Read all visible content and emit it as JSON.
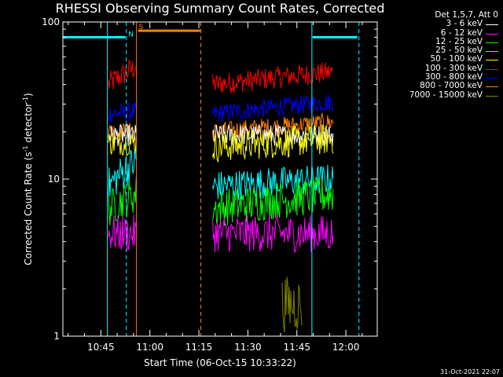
{
  "chart_data": {
    "type": "line",
    "title": "RHESSI Observing Summary Count Rates, Corrected",
    "xlabel": "Start Time (06-Oct-15 10:33:22)",
    "ylabel_parts": [
      "Corrected Count Rate (s",
      "-1",
      " detector",
      "-1",
      ")"
    ],
    "yscale": "log",
    "ylim": [
      1,
      100
    ],
    "xlim_min": [
      33.37,
      129.6
    ],
    "yticks": [
      {
        "v": 1,
        "label": "1"
      },
      {
        "v": 10,
        "label": "10"
      },
      {
        "v": 100,
        "label": "100"
      }
    ],
    "xticks": [
      {
        "v": 45,
        "label": "10:45"
      },
      {
        "v": 60,
        "label": "11:00"
      },
      {
        "v": 75,
        "label": "11:15"
      },
      {
        "v": 90,
        "label": "11:30"
      },
      {
        "v": 105,
        "label": "11:45"
      },
      {
        "v": 120,
        "label": "12:00"
      }
    ],
    "legend_header": "Det 1,5,7, Att 0",
    "legend_position": "outside-right",
    "series": [
      {
        "name": "3 - 6 keV",
        "color": "#ffffff"
      },
      {
        "name": "6 - 12 keV",
        "color": "#ff00ff"
      },
      {
        "name": "12 - 25 keV",
        "color": "#00ff00"
      },
      {
        "name": "25 - 50 keV",
        "color": "#00ffff"
      },
      {
        "name": "50 - 100 keV",
        "color": "#ffff00"
      },
      {
        "name": "100 - 300 keV",
        "color": "#ff0000"
      },
      {
        "name": "300 - 800 keV",
        "color": "#0000ff"
      },
      {
        "name": "800 - 7000 keV",
        "color": "#ff8000"
      },
      {
        "name": "7000 - 15000 keV",
        "color": "#808000"
      }
    ],
    "plot_series": [
      {
        "legend_index": 5,
        "segments": [
          {
            "start": 47.3,
            "end": 55.8,
            "level": 40,
            "level_end": 52,
            "noise": 0.08
          },
          {
            "start": 79.2,
            "end": 116.1,
            "level": 40,
            "level_end": 48,
            "noise": 0.07
          }
        ]
      },
      {
        "legend_index": 6,
        "segments": [
          {
            "start": 47.3,
            "end": 55.8,
            "level": 26,
            "level_end": 27,
            "noise": 0.06
          },
          {
            "start": 79.2,
            "end": 116.1,
            "level": 26,
            "level_end": 31,
            "noise": 0.06
          }
        ]
      },
      {
        "legend_index": 7,
        "segments": [
          {
            "start": 47.3,
            "end": 55.8,
            "level": 20,
            "level_end": 20,
            "noise": 0.06
          },
          {
            "start": 79.2,
            "end": 116.1,
            "level": 20,
            "level_end": 23,
            "noise": 0.06
          }
        ]
      },
      {
        "legend_index": 0,
        "segments": [
          {
            "start": 47.3,
            "end": 55.8,
            "level": 19,
            "level_end": 19,
            "noise": 0.07
          },
          {
            "start": 79.2,
            "end": 116.1,
            "level": 19,
            "level_end": 19,
            "noise": 0.07
          }
        ]
      },
      {
        "legend_index": 4,
        "segments": [
          {
            "start": 47.3,
            "end": 55.8,
            "level": 17,
            "level_end": 17,
            "noise": 0.08
          },
          {
            "start": 79.2,
            "end": 116.1,
            "level": 16,
            "level_end": 18,
            "noise": 0.1
          }
        ]
      },
      {
        "legend_index": 3,
        "segments": [
          {
            "start": 47.3,
            "end": 55.8,
            "level": 9,
            "level_end": 13,
            "noise": 0.12
          },
          {
            "start": 79.2,
            "end": 116.1,
            "level": 9,
            "level_end": 10,
            "noise": 0.1
          }
        ]
      },
      {
        "legend_index": 2,
        "segments": [
          {
            "start": 47.3,
            "end": 55.8,
            "level": 6.5,
            "level_end": 8,
            "noise": 0.12
          },
          {
            "start": 79.2,
            "end": 116.1,
            "level": 6.5,
            "level_end": 8,
            "noise": 0.12
          }
        ]
      },
      {
        "legend_index": 1,
        "segments": [
          {
            "start": 47.3,
            "end": 55.8,
            "level": 4.5,
            "level_end": 4.5,
            "noise": 0.12
          },
          {
            "start": 79.2,
            "end": 116.1,
            "level": 4.5,
            "level_end": 4.5,
            "noise": 0.12
          }
        ]
      },
      {
        "legend_index": 8,
        "segments": [
          {
            "start": 100.5,
            "end": 106.5,
            "level": 1.6,
            "level_end": 1.6,
            "noise": 0.18
          }
        ]
      }
    ],
    "top_bars": [
      {
        "color": "#00ffff",
        "start": 33.37,
        "end": 52.5,
        "level": 80
      },
      {
        "color": "#ff8000",
        "start": 56.4,
        "end": 75.4,
        "level": 88
      },
      {
        "color": "#00ffff",
        "start": 109.8,
        "end": 123.5,
        "level": 80
      }
    ],
    "lines": [
      {
        "color": "#00ffff",
        "style": "solid",
        "x": 47.0
      },
      {
        "color": "#00ffff",
        "style": "dashed",
        "x": 52.8
      },
      {
        "color": "#ff8000",
        "style": "solid",
        "x": 55.9
      },
      {
        "color": "#ff8000",
        "style": "dashed",
        "x": 75.6
      },
      {
        "color": "#00ffff",
        "style": "solid",
        "x": 109.6
      },
      {
        "color": "#00ffff",
        "style": "dashed",
        "x": 124.0
      }
    ],
    "annotations": [
      {
        "text": "S",
        "color": "#ff8000",
        "x": 56.6,
        "y": 90
      },
      {
        "text": "N",
        "color": "#00ffff",
        "x": 53.4,
        "y": 81
      }
    ]
  },
  "timestamp": "31-Oct-2021 22:07"
}
